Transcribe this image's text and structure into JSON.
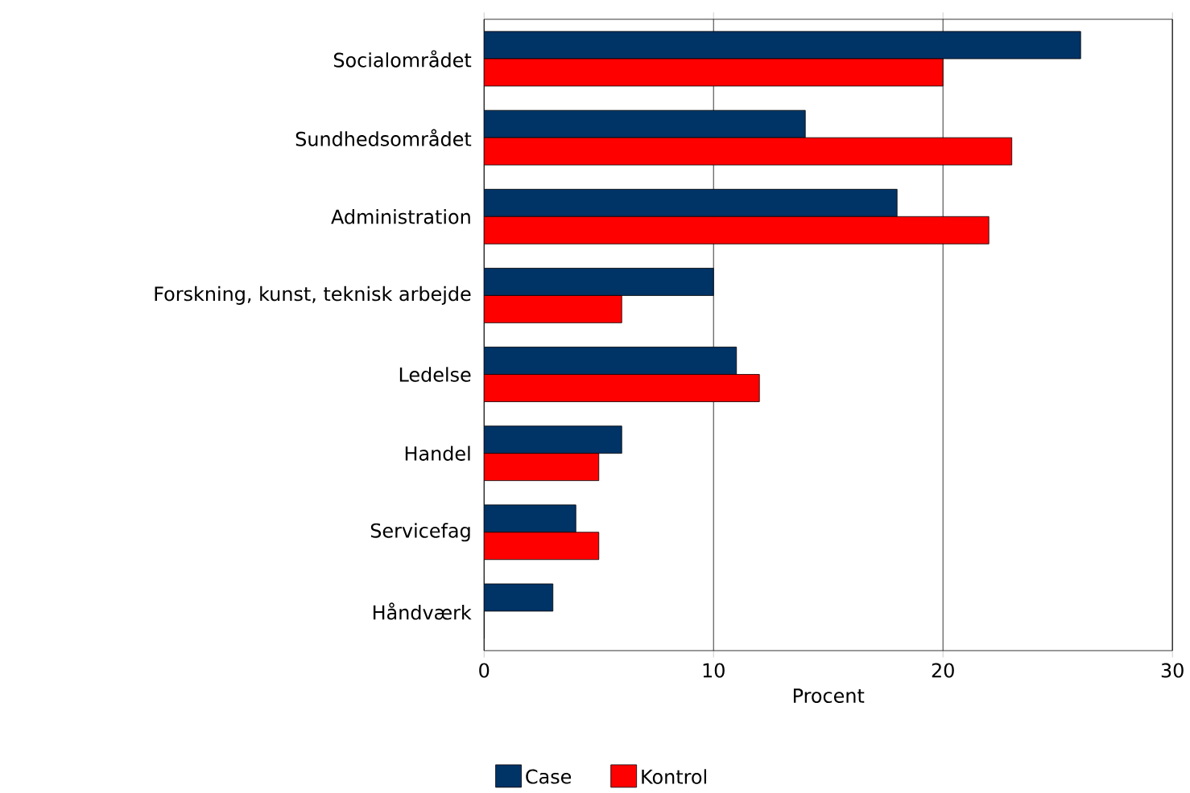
{
  "chart_data": {
    "type": "bar",
    "orientation": "horizontal",
    "xlabel": "Procent",
    "categories": [
      "Socialområdet",
      "Sundhedsområdet",
      "Administration",
      "Forskning, kunst, teknisk arbejde",
      "Ledelse",
      "Handel",
      "Servicefag",
      "Håndværk"
    ],
    "series": [
      {
        "name": "Case",
        "color": "#003366",
        "values": [
          26,
          14,
          18,
          10,
          11,
          6,
          4,
          3
        ]
      },
      {
        "name": "Kontrol",
        "color": "#ff0000",
        "values": [
          20,
          23,
          22,
          6,
          12,
          5,
          5,
          0
        ]
      }
    ],
    "xlim": [
      0,
      30
    ],
    "xticks": [
      0,
      10,
      20,
      30
    ],
    "grid": "x",
    "legend": "bottom"
  }
}
